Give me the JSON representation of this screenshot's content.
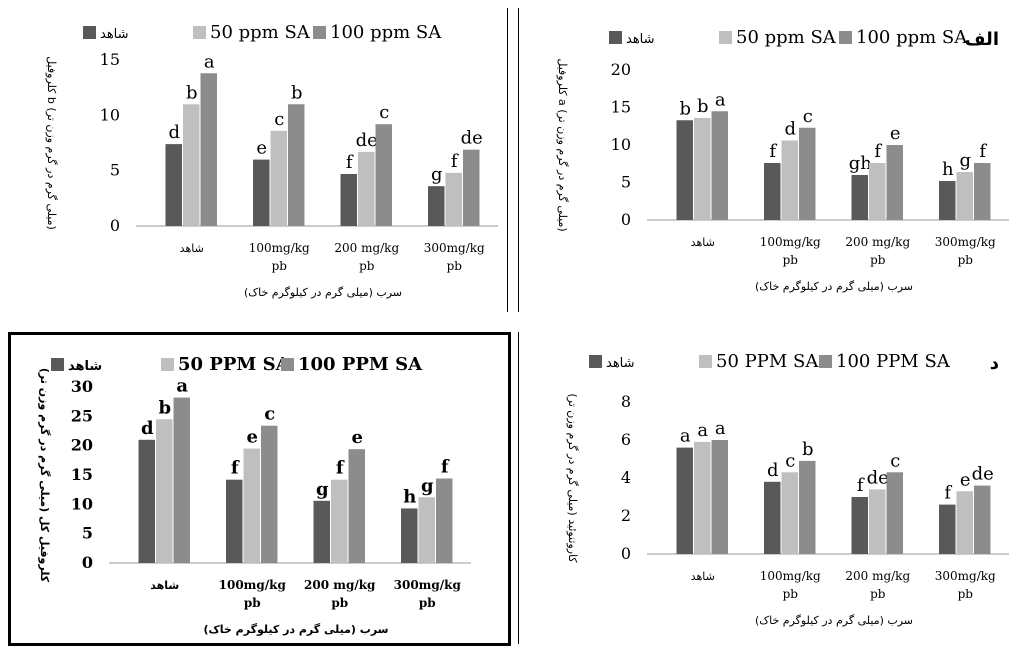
{
  "legend": [
    "شاهد",
    "50 ppm SA",
    "100 ppm SA"
  ],
  "colors": {
    "control": "#595959",
    "sa50": "#bfbfbf",
    "sa100": "#8c8c8c"
  },
  "chart_data": [
    {
      "type": "bar",
      "panel_label": "الف",
      "ylabel": "کلروفیل a (میلی گرم در گرم وزن تر)",
      "xlabel": "سرب (میلی گرم در کیلوگرم خاک)",
      "categories": [
        "شاهد",
        "100mg/kg pb",
        "200 mg/kg pb",
        "300mg/kg pb"
      ],
      "ylim": [
        0,
        20
      ],
      "yticks": [
        0,
        5,
        10,
        15,
        20
      ],
      "legend": [
        "شاهد",
        "50 ppm SA",
        "100 ppm SA"
      ],
      "series": [
        {
          "name": "شاهد",
          "values": [
            13.3,
            7.6,
            6.0,
            5.2
          ],
          "letters": [
            "b",
            "f",
            "gh",
            "h"
          ]
        },
        {
          "name": "50 ppm SA",
          "values": [
            13.6,
            10.6,
            7.6,
            6.4
          ],
          "letters": [
            "b",
            "d",
            "f",
            "g"
          ]
        },
        {
          "name": "100 ppm SA",
          "values": [
            14.5,
            12.3,
            10.0,
            7.6
          ],
          "letters": [
            "a",
            "c",
            "e",
            "f"
          ]
        }
      ]
    },
    {
      "type": "bar",
      "panel_label": "",
      "ylabel": "کلروفیل b (میلی گرم در گرم وزن تر)",
      "xlabel": "سرب (میلی گرم در کیلوگرم خاک)",
      "categories": [
        "شاهد",
        "100mg/kg pb",
        "200 mg/kg pb",
        "300mg/kg pb"
      ],
      "ylim": [
        0,
        15
      ],
      "yticks": [
        0,
        5,
        10,
        15
      ],
      "legend": [
        "شاهد",
        "50 ppm SA",
        "100 ppm SA"
      ],
      "series": [
        {
          "name": "شاهد",
          "values": [
            7.4,
            6.0,
            4.7,
            3.6
          ],
          "letters": [
            "d",
            "e",
            "f",
            "g"
          ]
        },
        {
          "name": "50 ppm SA",
          "values": [
            11.0,
            8.6,
            6.7,
            4.8
          ],
          "letters": [
            "b",
            "c",
            "de",
            "f"
          ]
        },
        {
          "name": "100 ppm SA",
          "values": [
            13.8,
            11.0,
            9.2,
            6.9
          ],
          "letters": [
            "a",
            "b",
            "c",
            "de"
          ]
        }
      ]
    },
    {
      "type": "bar",
      "panel_label": "د",
      "ylabel": "کاروتنوئید (میلی گرم در گرم وزن تر)",
      "xlabel": "سرب (میلی گرم در کیلوگرم خاک)",
      "categories": [
        "شاهد",
        "100mg/kg pb",
        "200 mg/kg pb",
        "300mg/kg pb"
      ],
      "ylim": [
        0,
        8
      ],
      "yticks": [
        0,
        2,
        4,
        6,
        8
      ],
      "legend": [
        "شاهد",
        "50 PPM SA",
        "100 PPM SA"
      ],
      "series": [
        {
          "name": "شاهد",
          "values": [
            5.6,
            3.8,
            3.0,
            2.6
          ],
          "letters": [
            "a",
            "d",
            "f",
            "f"
          ]
        },
        {
          "name": "50 PPM SA",
          "values": [
            5.9,
            4.3,
            3.4,
            3.3
          ],
          "letters": [
            "a",
            "c",
            "de",
            "e"
          ]
        },
        {
          "name": "100 PPM SA",
          "values": [
            6.0,
            4.9,
            4.3,
            3.6
          ],
          "letters": [
            "a",
            "b",
            "c",
            "de"
          ]
        }
      ]
    },
    {
      "type": "bar",
      "panel_label": "",
      "ylabel": "کلروفیل کل (میلی گرم در گرم وزن تر)",
      "xlabel": "سرب (میلی گرم در کیلوگرم خاک)",
      "categories": [
        "شاهد",
        "100mg/kg pb",
        "200 mg/kg pb",
        "300mg/kg pb"
      ],
      "ylim": [
        0,
        30
      ],
      "yticks": [
        0,
        5,
        10,
        15,
        20,
        25,
        30
      ],
      "legend": [
        "شاهد",
        "50 PPM SA",
        "100 PPM SA"
      ],
      "series": [
        {
          "name": "شاهد",
          "values": [
            21.0,
            14.2,
            10.6,
            9.3
          ],
          "letters": [
            "d",
            "f",
            "g",
            "h"
          ]
        },
        {
          "name": "50 PPM SA",
          "values": [
            24.5,
            19.5,
            14.2,
            11.2
          ],
          "letters": [
            "b",
            "e",
            "f",
            "g"
          ]
        },
        {
          "name": "100 PPM SA",
          "values": [
            28.2,
            23.4,
            19.4,
            14.4
          ],
          "letters": [
            "a",
            "c",
            "e",
            "f"
          ]
        }
      ]
    }
  ]
}
